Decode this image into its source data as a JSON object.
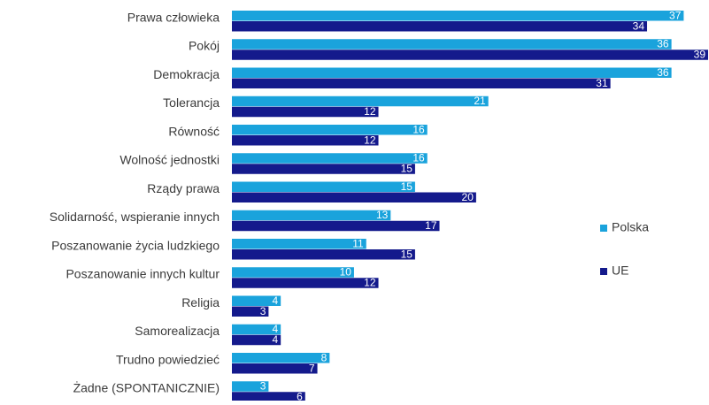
{
  "chart_data": {
    "type": "bar",
    "orientation": "horizontal",
    "categories": [
      "Prawa człowieka ",
      "Pokój",
      "Demokracja",
      "Tolerancja",
      "Równość ",
      "Wolność jednostki",
      "Rządy prawa ",
      "Solidarność, wspieranie innych",
      "Poszanowanie życia ludzkiego",
      "Poszanowanie innych kultur",
      "Religia",
      "Samorealizacja",
      "Trudno powiedzieć",
      "Żadne (SPONTANICZNIE)"
    ],
    "series": [
      {
        "name": "Polska",
        "color": "#1aa3dc",
        "values": [
          37,
          36,
          36,
          21,
          16,
          16,
          15,
          13,
          11,
          10,
          4,
          4,
          8,
          3
        ]
      },
      {
        "name": "UE",
        "color": "#141a8c",
        "values": [
          34,
          39,
          31,
          12,
          12,
          15,
          20,
          17,
          15,
          12,
          3,
          4,
          7,
          6
        ]
      }
    ],
    "xlim": [
      0,
      39
    ],
    "grid": false,
    "axes_visible": false,
    "data_labels": true,
    "legend_position": "right"
  }
}
